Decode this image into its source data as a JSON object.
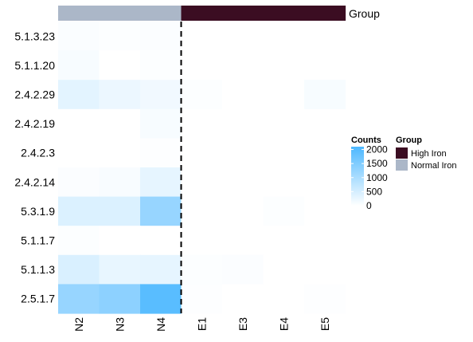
{
  "chart_data": {
    "type": "heatmap",
    "rows": [
      "5.1.3.23",
      "5.1.1.20",
      "2.4.2.29",
      "2.4.2.19",
      "2.4.2.3",
      "2.4.2.14",
      "5.3.1.9",
      "5.1.1.7",
      "5.1.1.3",
      "2.5.1.7"
    ],
    "columns": [
      "N2",
      "N3",
      "N4",
      "E1",
      "E3",
      "E4",
      "E5"
    ],
    "values": [
      [
        60,
        40,
        50,
        0,
        0,
        0,
        0
      ],
      [
        100,
        0,
        40,
        0,
        0,
        0,
        0
      ],
      [
        330,
        230,
        170,
        40,
        0,
        0,
        90
      ],
      [
        0,
        0,
        100,
        0,
        0,
        0,
        0
      ],
      [
        0,
        0,
        20,
        0,
        0,
        0,
        0
      ],
      [
        50,
        80,
        290,
        0,
        0,
        0,
        0
      ],
      [
        420,
        420,
        1230,
        0,
        0,
        40,
        0
      ],
      [
        30,
        0,
        0,
        0,
        0,
        0,
        0
      ],
      [
        450,
        270,
        290,
        40,
        50,
        0,
        0
      ],
      [
        1230,
        1350,
        1960,
        20,
        0,
        0,
        20
      ]
    ],
    "column_groups": [
      "Normal Iron",
      "Normal Iron",
      "Normal Iron",
      "High Iron",
      "High Iron",
      "High Iron",
      "High Iron"
    ],
    "annotation_title": "Group",
    "color_legend": {
      "title": "Counts",
      "ticks": [
        2000,
        1500,
        1000,
        500,
        0
      ],
      "range": [
        0,
        2100
      ],
      "color_low": "#ffffff",
      "color_high": "#4db8ff"
    },
    "group_legend": {
      "title": "Group",
      "entries": [
        {
          "label": "High Iron",
          "color": "#3b0d22"
        },
        {
          "label": "Normal Iron",
          "color": "#abb7c8"
        }
      ]
    },
    "split_after_column": "N4"
  }
}
